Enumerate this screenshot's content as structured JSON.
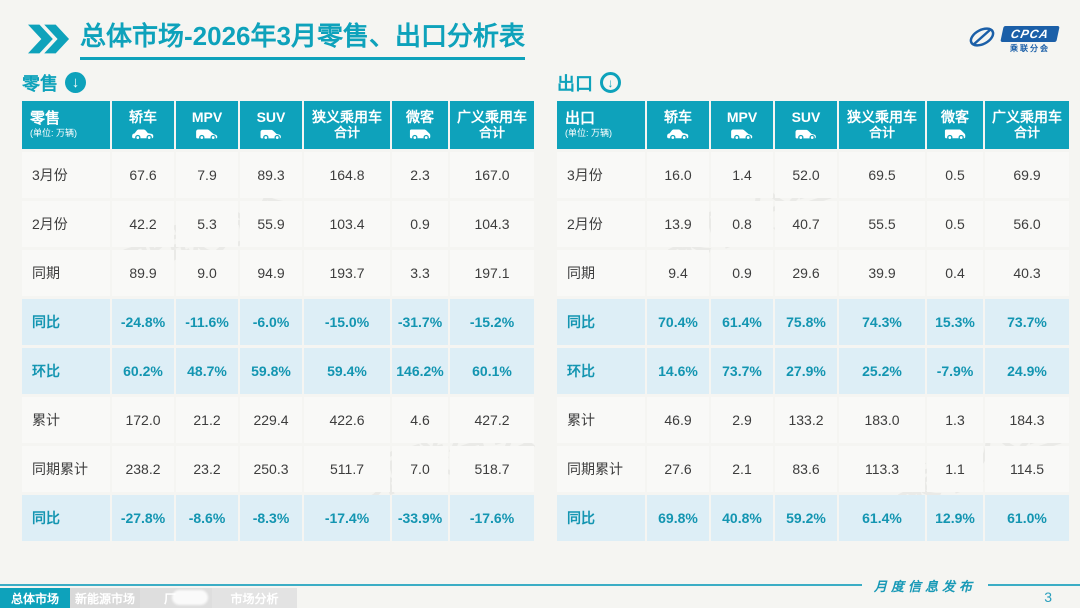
{
  "title": {
    "text": "总体市场-2026年3月零售、出口分析表"
  },
  "logo": {
    "name": "CPCA",
    "subtitle": "乘联分会"
  },
  "colors": {
    "teal": "#0ea2bb",
    "highlight_bg": "#ddeef6",
    "highlight_text": "#1395b1",
    "logo_blue": "#1b5fa8"
  },
  "watermark": {
    "text": "乘联分会"
  },
  "tables": [
    {
      "id": "retail",
      "section_label": "零售",
      "corner_label": "零售",
      "unit": "(单位: 万辆)",
      "arrow_style": "filled",
      "columns": [
        {
          "label": "轿车",
          "icon": "sedan-icon",
          "car": "sedan"
        },
        {
          "label": "MPV",
          "icon": "mpv-icon",
          "car": "mpv"
        },
        {
          "label": "SUV",
          "icon": "suv-icon",
          "car": "suv"
        },
        {
          "label": "狭义乘用车",
          "label2": "合计"
        },
        {
          "label": "微客",
          "icon": "microvan-icon",
          "car": "micro"
        },
        {
          "label": "广义乘用车",
          "label2": "合计"
        }
      ],
      "rows": [
        {
          "label": "3月份",
          "highlight": false,
          "values": [
            "67.6",
            "7.9",
            "89.3",
            "164.8",
            "2.3",
            "167.0"
          ]
        },
        {
          "label": "2月份",
          "highlight": false,
          "values": [
            "42.2",
            "5.3",
            "55.9",
            "103.4",
            "0.9",
            "104.3"
          ]
        },
        {
          "label": "同期",
          "highlight": false,
          "values": [
            "89.9",
            "9.0",
            "94.9",
            "193.7",
            "3.3",
            "197.1"
          ]
        },
        {
          "label": "同比",
          "highlight": true,
          "values": [
            "-24.8%",
            "-11.6%",
            "-6.0%",
            "-15.0%",
            "-31.7%",
            "-15.2%"
          ]
        },
        {
          "label": "环比",
          "highlight": true,
          "values": [
            "60.2%",
            "48.7%",
            "59.8%",
            "59.4%",
            "146.2%",
            "60.1%"
          ]
        },
        {
          "label": "累计",
          "highlight": false,
          "values": [
            "172.0",
            "21.2",
            "229.4",
            "422.6",
            "4.6",
            "427.2"
          ]
        },
        {
          "label": "同期累计",
          "highlight": false,
          "values": [
            "238.2",
            "23.2",
            "250.3",
            "511.7",
            "7.0",
            "518.7"
          ]
        },
        {
          "label": "同比",
          "highlight": true,
          "values": [
            "-27.8%",
            "-8.6%",
            "-8.3%",
            "-17.4%",
            "-33.9%",
            "-17.6%"
          ]
        }
      ]
    },
    {
      "id": "export",
      "section_label": "出口",
      "corner_label": "出口",
      "unit": "(单位: 万辆)",
      "arrow_style": "ring",
      "columns": [
        {
          "label": "轿车",
          "icon": "sedan-icon",
          "car": "sedan"
        },
        {
          "label": "MPV",
          "icon": "mpv-icon",
          "car": "mpv"
        },
        {
          "label": "SUV",
          "icon": "suv-icon",
          "car": "suv"
        },
        {
          "label": "狭义乘用车",
          "label2": "合计"
        },
        {
          "label": "微客",
          "icon": "microvan-icon",
          "car": "micro"
        },
        {
          "label": "广义乘用车",
          "label2": "合计"
        }
      ],
      "rows": [
        {
          "label": "3月份",
          "highlight": false,
          "values": [
            "16.0",
            "1.4",
            "52.0",
            "69.5",
            "0.5",
            "69.9"
          ]
        },
        {
          "label": "2月份",
          "highlight": false,
          "values": [
            "13.9",
            "0.8",
            "40.7",
            "55.5",
            "0.5",
            "56.0"
          ]
        },
        {
          "label": "同期",
          "highlight": false,
          "values": [
            "9.4",
            "0.9",
            "29.6",
            "39.9",
            "0.4",
            "40.3"
          ]
        },
        {
          "label": "同比",
          "highlight": true,
          "values": [
            "70.4%",
            "61.4%",
            "75.8%",
            "74.3%",
            "15.3%",
            "73.7%"
          ]
        },
        {
          "label": "环比",
          "highlight": true,
          "values": [
            "14.6%",
            "73.7%",
            "27.9%",
            "25.2%",
            "-7.9%",
            "24.9%"
          ]
        },
        {
          "label": "累计",
          "highlight": false,
          "values": [
            "46.9",
            "2.9",
            "133.2",
            "183.0",
            "1.3",
            "184.3"
          ]
        },
        {
          "label": "同期累计",
          "highlight": false,
          "values": [
            "27.6",
            "2.1",
            "83.6",
            "113.3",
            "1.1",
            "114.5"
          ]
        },
        {
          "label": "同比",
          "highlight": true,
          "values": [
            "69.8%",
            "40.8%",
            "59.2%",
            "61.4%",
            "12.9%",
            "61.0%"
          ]
        }
      ]
    }
  ],
  "footer": {
    "publish_label": "月度信息发布",
    "page_number": "3",
    "tabs": [
      {
        "label": "总体市场",
        "active": true
      },
      {
        "label": "新能源市场",
        "active": false
      },
      {
        "label": "厂",
        "active": false
      },
      {
        "label": "市场分析",
        "active": false
      }
    ]
  }
}
